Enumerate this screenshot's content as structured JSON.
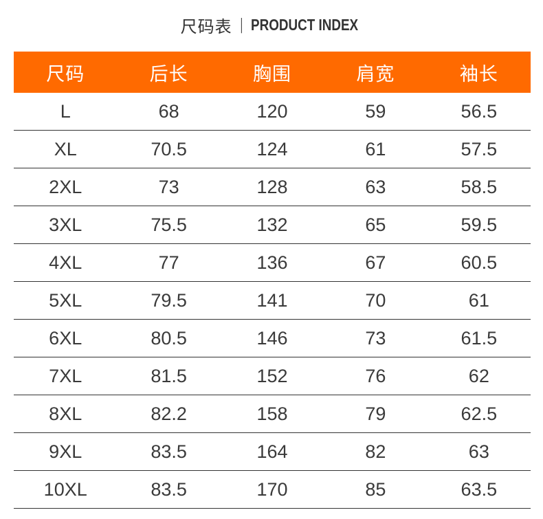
{
  "title": {
    "cn": "尺码表",
    "separator": "|",
    "en": "PRODUCT INDEX"
  },
  "table": {
    "headers": [
      "尺码",
      "后长",
      "胸围",
      "肩宽",
      "袖长"
    ],
    "rows": [
      [
        "L",
        "68",
        "120",
        "59",
        "56.5"
      ],
      [
        "XL",
        "70.5",
        "124",
        "61",
        "57.5"
      ],
      [
        "2XL",
        "73",
        "128",
        "63",
        "58.5"
      ],
      [
        "3XL",
        "75.5",
        "132",
        "65",
        "59.5"
      ],
      [
        "4XL",
        "77",
        "136",
        "67",
        "60.5"
      ],
      [
        "5XL",
        "79.5",
        "141",
        "70",
        "61"
      ],
      [
        "6XL",
        "80.5",
        "146",
        "73",
        "61.5"
      ],
      [
        "7XL",
        "81.5",
        "152",
        "76",
        "62"
      ],
      [
        "8XL",
        "82.2",
        "158",
        "79",
        "62.5"
      ],
      [
        "9XL",
        "83.5",
        "164",
        "82",
        "63"
      ],
      [
        "10XL",
        "83.5",
        "170",
        "85",
        "63.5"
      ]
    ]
  },
  "colors": {
    "header_background": "#ff6a00",
    "header_text": "#ffffff",
    "body_text": "#3a3a3a",
    "row_divider": "#333333"
  }
}
